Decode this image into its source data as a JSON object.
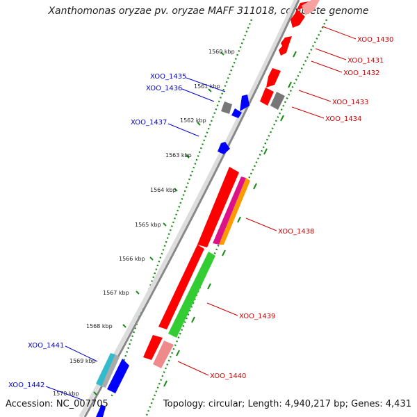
{
  "title": "Xanthomonas oryzae pv. oryzae MAFF 311018, complete genome",
  "accession_text": "Accession: NC_007705",
  "summary_text": "Topology: circular; Length: 4,940,217 bp; Genes: 4,431",
  "scale_labels": [
    "1560 kbp",
    "1561 kbp",
    "1562 kbp",
    "1563 kbp",
    "1564 kbp",
    "1565 kbp",
    "1566 kbp",
    "1567 kbp",
    "1568 kbp",
    "1569 kbp",
    "1570 kbp"
  ],
  "colors": {
    "forward_label": "#0000cc",
    "reverse_label": "#cc0000",
    "dotted_ring": "#1a8a1a",
    "backbone": "#888888",
    "red": "#ff0000",
    "pink": "#ef8a8a",
    "green": "#33cc33",
    "blue": "#0000ff",
    "gray": "#777777",
    "cyan": "#33bbcc"
  },
  "genes": {
    "forward": [
      {
        "label": "XOO_1435"
      },
      {
        "label": "XOO_1436"
      },
      {
        "label": "XOO_1437"
      },
      {
        "label": "XOO_1441"
      },
      {
        "label": "XOO_1442"
      }
    ],
    "reverse": [
      {
        "label": "XOO_1430"
      },
      {
        "label": "XOO_1431"
      },
      {
        "label": "XOO_1432"
      },
      {
        "label": "XOO_1433"
      },
      {
        "label": "XOO_1434"
      },
      {
        "label": "XOO_1438"
      },
      {
        "label": "XOO_1439"
      },
      {
        "label": "XOO_1440"
      }
    ]
  }
}
